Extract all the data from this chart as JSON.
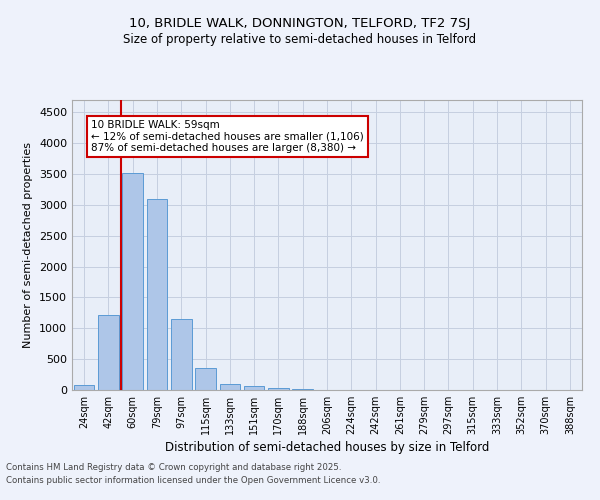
{
  "title_line1": "10, BRIDLE WALK, DONNINGTON, TELFORD, TF2 7SJ",
  "title_line2": "Size of property relative to semi-detached houses in Telford",
  "xlabel": "Distribution of semi-detached houses by size in Telford",
  "ylabel": "Number of semi-detached properties",
  "categories": [
    "24sqm",
    "42sqm",
    "60sqm",
    "79sqm",
    "97sqm",
    "115sqm",
    "133sqm",
    "151sqm",
    "170sqm",
    "188sqm",
    "206sqm",
    "224sqm",
    "242sqm",
    "261sqm",
    "279sqm",
    "297sqm",
    "315sqm",
    "333sqm",
    "352sqm",
    "370sqm",
    "388sqm"
  ],
  "values": [
    80,
    1220,
    3520,
    3100,
    1150,
    350,
    100,
    60,
    30,
    10,
    5,
    2,
    0,
    0,
    0,
    0,
    0,
    0,
    0,
    0,
    0
  ],
  "bar_color": "#aec6e8",
  "bar_edge_color": "#5b9bd5",
  "vline_color": "#cc0000",
  "ylim": [
    0,
    4700
  ],
  "yticks": [
    0,
    500,
    1000,
    1500,
    2000,
    2500,
    3000,
    3500,
    4000,
    4500
  ],
  "annotation_title": "10 BRIDLE WALK: 59sqm",
  "annotation_line1": "← 12% of semi-detached houses are smaller (1,106)",
  "annotation_line2": "87% of semi-detached houses are larger (8,380) →",
  "annotation_box_color": "#ffffff",
  "annotation_box_edge": "#cc0000",
  "footnote1": "Contains HM Land Registry data © Crown copyright and database right 2025.",
  "footnote2": "Contains public sector information licensed under the Open Government Licence v3.0.",
  "bg_color": "#eef2fb",
  "plot_bg_color": "#e8eef8",
  "grid_color": "#c5cfe0"
}
